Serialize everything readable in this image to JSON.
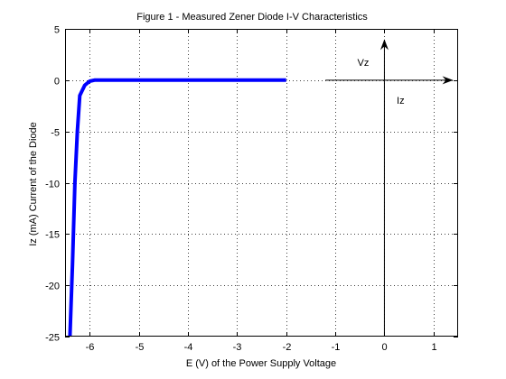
{
  "chart_data": {
    "type": "line",
    "title": "Figure 1 - Measured Zener Diode I-V Characteristics",
    "xlabel": "E (V) of the Power Supply Voltage",
    "ylabel": "Iz (mA) Current of the Diode",
    "xlim": [
      -6.5,
      1.5
    ],
    "ylim": [
      -25,
      5
    ],
    "xticks": [
      -6,
      -5,
      -4,
      -3,
      -2,
      -1,
      0,
      1
    ],
    "xtick_labels": [
      "-6",
      "-5",
      "-4",
      "-3",
      "-2",
      "-1",
      "0",
      "1"
    ],
    "yticks": [
      5,
      0,
      -5,
      -10,
      -15,
      -20,
      -25
    ],
    "ytick_labels": [
      "5",
      "0",
      "-5",
      "-10",
      "-15",
      "-20",
      "-25"
    ],
    "grid": true,
    "series": [
      {
        "color": "#0000ff",
        "x": [
          -2.0,
          -4.0,
          -5.9,
          -6.0,
          -6.1,
          -6.2,
          -6.25,
          -6.3,
          -6.35,
          -6.4
        ],
        "y": [
          0.0,
          0.0,
          0.0,
          -0.1,
          -0.5,
          -1.5,
          -5.0,
          -10.0,
          -18.0,
          -25.0
        ]
      }
    ],
    "annotations": [
      {
        "text": "Vz",
        "x": -0.55,
        "y": 1.4
      },
      {
        "text": "Iz",
        "x": 0.25,
        "y": -2.3
      }
    ],
    "arrows": [
      {
        "direction": "right",
        "x_from": -1.2,
        "x_to": 1.4,
        "y": 0
      },
      {
        "direction": "up",
        "x": 0,
        "y_from": -25,
        "y_to": 4
      }
    ]
  }
}
